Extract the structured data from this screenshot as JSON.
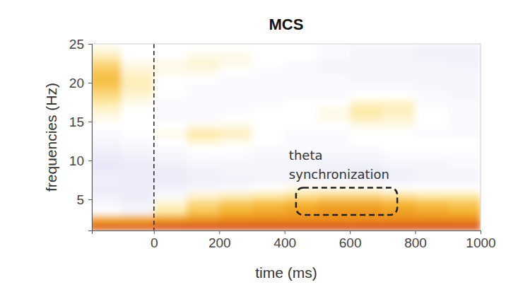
{
  "chart_data": {
    "type": "heatmap",
    "title": "MCS",
    "x_label": "time (ms)",
    "y_label": "frequencies (Hz)",
    "x": [
      -150,
      -50,
      50,
      150,
      250,
      350,
      450,
      550,
      650,
      750,
      850,
      950
    ],
    "y": [
      1.5,
      2.5,
      3.5,
      4.5,
      5.5,
      6.5,
      7.5,
      8.5,
      9.5,
      10.5,
      11.5,
      12.5,
      13.5,
      14.5,
      15.5,
      16.5,
      17.5,
      18.5,
      19.5,
      20.5,
      21.5,
      22.5,
      23.5,
      24.5
    ],
    "values": [
      [
        0.85,
        0.85,
        0.9,
        0.9,
        0.9,
        0.9,
        0.9,
        0.9,
        0.9,
        0.9,
        0.9,
        0.9
      ],
      [
        0.55,
        0.55,
        0.6,
        0.65,
        0.7,
        0.7,
        0.7,
        0.7,
        0.7,
        0.7,
        0.7,
        0.7
      ],
      [
        0,
        -0.1,
        0.2,
        0.4,
        0.5,
        0.55,
        0.6,
        0.65,
        0.65,
        0.6,
        0.55,
        0.5
      ],
      [
        -0.1,
        -0.15,
        0.1,
        0.3,
        0.4,
        0.45,
        0.5,
        0.55,
        0.55,
        0.5,
        0.45,
        0.4
      ],
      [
        -0.15,
        -0.2,
        -0.05,
        0.1,
        0.15,
        0.2,
        0.25,
        0.3,
        0.3,
        0.25,
        0.2,
        0.2
      ],
      [
        -0.2,
        -0.2,
        -0.15,
        -0.1,
        -0.05,
        0,
        0.05,
        0.05,
        0.05,
        0,
        0,
        0
      ],
      [
        -0.15,
        -0.2,
        -0.2,
        -0.15,
        -0.15,
        -0.1,
        -0.1,
        -0.1,
        -0.15,
        -0.15,
        -0.1,
        -0.1
      ],
      [
        -0.2,
        -0.2,
        -0.2,
        -0.15,
        -0.1,
        -0.1,
        -0.1,
        -0.15,
        -0.2,
        -0.15,
        -0.1,
        -0.1
      ],
      [
        -0.25,
        -0.2,
        -0.15,
        -0.1,
        -0.1,
        -0.1,
        -0.1,
        -0.15,
        -0.15,
        -0.1,
        -0.1,
        -0.05
      ],
      [
        -0.2,
        -0.15,
        -0.1,
        -0.05,
        -0.05,
        -0.1,
        -0.1,
        -0.1,
        -0.1,
        -0.05,
        -0.05,
        -0.05
      ],
      [
        -0.15,
        -0.1,
        -0.05,
        0,
        0,
        -0.05,
        -0.05,
        -0.05,
        -0.05,
        0,
        0,
        0
      ],
      [
        -0.1,
        -0.05,
        0,
        0.1,
        0.05,
        0,
        -0.05,
        -0.05,
        0,
        0,
        0,
        0
      ],
      [
        -0.05,
        0,
        0.05,
        0.2,
        0.15,
        0,
        -0.05,
        -0.05,
        0,
        0,
        -0.05,
        -0.05
      ],
      [
        0,
        0,
        0,
        0.05,
        0.05,
        0,
        0,
        0,
        0.05,
        0.05,
        0,
        -0.05
      ],
      [
        0.05,
        0,
        -0.05,
        -0.05,
        0,
        0,
        0,
        0.05,
        0.15,
        0.1,
        0,
        -0.05
      ],
      [
        0.1,
        0,
        -0.05,
        -0.05,
        -0.05,
        0,
        0,
        0.05,
        0.2,
        0.15,
        0,
        -0.05
      ],
      [
        0.2,
        0.05,
        -0.05,
        -0.05,
        -0.05,
        -0.05,
        0,
        0,
        0.1,
        0.1,
        -0.05,
        -0.05
      ],
      [
        0.3,
        0.1,
        0,
        -0.05,
        -0.05,
        -0.05,
        -0.05,
        -0.05,
        0,
        0,
        -0.05,
        -0.1
      ],
      [
        0.4,
        0.15,
        0,
        -0.05,
        -0.05,
        -0.05,
        -0.05,
        -0.05,
        -0.05,
        -0.05,
        -0.1,
        -0.1
      ],
      [
        0.45,
        0.15,
        0,
        0,
        -0.05,
        -0.05,
        -0.05,
        -0.05,
        -0.1,
        -0.1,
        -0.1,
        -0.1
      ],
      [
        0.4,
        0.1,
        0.05,
        0.05,
        0,
        -0.05,
        -0.05,
        -0.1,
        -0.1,
        -0.1,
        -0.1,
        -0.1
      ],
      [
        0.3,
        0.05,
        0.05,
        0.1,
        0.05,
        0,
        -0.05,
        -0.1,
        -0.1,
        -0.1,
        -0.1,
        -0.15
      ],
      [
        0.15,
        0,
        0,
        0.05,
        0.05,
        0,
        0,
        -0.05,
        -0.1,
        -0.1,
        -0.15,
        -0.15
      ],
      [
        0.05,
        0,
        0,
        0,
        0,
        0,
        0,
        -0.05,
        -0.1,
        -0.1,
        -0.15,
        -0.15
      ]
    ],
    "xlim": [
      -190,
      1000
    ],
    "ylim": [
      1,
      25
    ],
    "xticks": [
      0,
      200,
      400,
      600,
      800,
      1000
    ],
    "yticks": [
      5,
      10,
      15,
      20,
      25
    ],
    "vline": 0,
    "annotations": [
      {
        "text": [
          "theta",
          "synchronization"
        ],
        "x": [
          435,
          745
        ],
        "y": [
          3,
          6.5
        ]
      }
    ]
  }
}
